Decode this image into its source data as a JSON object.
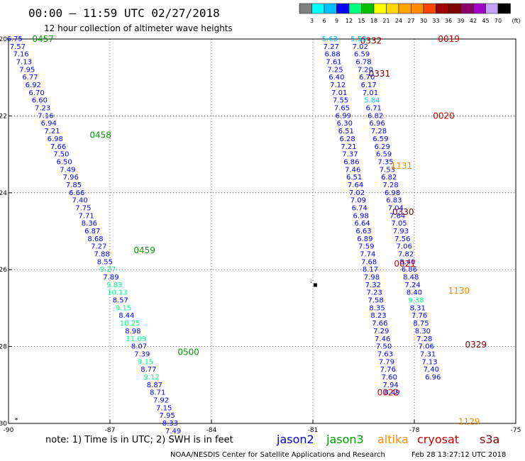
{
  "header": {
    "title": "00:00 – 11:59 UTC 02/27/2018",
    "subtitle": "12 hour collection of altimeter wave heights"
  },
  "colorbar": {
    "colors": [
      "#808080",
      "#00ffff",
      "#00bfff",
      "#0000ff",
      "#00ff7f",
      "#00c000",
      "#ffff00",
      "#ffd700",
      "#ffa500",
      "#ff8c00",
      "#ff4500",
      "#a00000",
      "#800000",
      "#8b0066",
      "#a000c8",
      "#c8a0ff",
      "#000000"
    ],
    "ticks": [
      "3",
      "6",
      "9",
      "12",
      "15",
      "18",
      "21",
      "24",
      "27",
      "30",
      "33",
      "36",
      "39",
      "42",
      "45",
      "70"
    ],
    "unit": "(ft)"
  },
  "footer": {
    "note": "note: 1) Time is in UTC; 2) SWH is in feet",
    "credit": "NOAA/NESDIS Center for Satellite Applications and Research",
    "timestamp": "Feb 28 13:27:12 UTC 2018"
  },
  "legend": [
    {
      "name": "jason2",
      "color": "#0000cc"
    },
    {
      "name": "jason3",
      "color": "#00a000"
    },
    {
      "name": "altika",
      "color": "#ff8c00"
    },
    {
      "name": "cryosat",
      "color": "#cc0000"
    },
    {
      "name": "s3a",
      "color": "#800000"
    }
  ],
  "chart_data": {
    "type": "scatter",
    "xlim": [
      -90,
      -75
    ],
    "ylim": [
      -30,
      -20
    ],
    "xticks": [
      "-90",
      "-87",
      "-84",
      "-81",
      "-78",
      "-75"
    ],
    "xtick_values": [
      -90,
      -87,
      -84,
      -81,
      -78,
      -75
    ],
    "yticks": [
      "-20",
      "-22",
      "-24",
      "-26",
      "-28",
      "-30"
    ],
    "ytick_values": [
      -20,
      -22,
      -24,
      -26,
      -28,
      -30
    ],
    "grid": true,
    "marks": [
      {
        "x": -89.77,
        "y": -29.97,
        "text": "*"
      },
      {
        "x": -81.05,
        "y": -26.4,
        "text": "·"
      },
      {
        "x": -80.93,
        "y": -26.45,
        "text": "▪"
      }
    ],
    "tracks": [
      {
        "satellite": "jason3",
        "color": "#00a000",
        "pass_labels": [
          {
            "text": "0457",
            "x": -89.3,
            "y": -20.0
          },
          {
            "text": "0458",
            "x": -87.6,
            "y": -22.5
          },
          {
            "text": "0459",
            "x": -86.3,
            "y": -25.5
          },
          {
            "text": "0500",
            "x": -85.0,
            "y": -28.15
          }
        ],
        "points": [
          {
            "x": -89.82,
            "y": -20.0,
            "v": "6.75"
          },
          {
            "x": -89.73,
            "y": -20.2,
            "v": "7.57"
          },
          {
            "x": -89.63,
            "y": -20.4,
            "v": "7.16"
          },
          {
            "x": -89.54,
            "y": -20.6,
            "v": "7.13"
          },
          {
            "x": -89.45,
            "y": -20.8,
            "v": "7.95"
          },
          {
            "x": -89.36,
            "y": -21.0,
            "v": "6.77"
          },
          {
            "x": -89.27,
            "y": -21.2,
            "v": "6.92"
          },
          {
            "x": -89.17,
            "y": -21.4,
            "v": "6.70"
          },
          {
            "x": -89.08,
            "y": -21.6,
            "v": "6.60"
          },
          {
            "x": -88.99,
            "y": -21.8,
            "v": "7.23"
          },
          {
            "x": -88.9,
            "y": -22.0,
            "v": "7.16"
          },
          {
            "x": -88.81,
            "y": -22.2,
            "v": "6.94"
          },
          {
            "x": -88.71,
            "y": -22.4,
            "v": "7.21"
          },
          {
            "x": -88.62,
            "y": -22.6,
            "v": "6.98"
          },
          {
            "x": -88.53,
            "y": -22.8,
            "v": "7.66"
          },
          {
            "x": -88.44,
            "y": -23.0,
            "v": "7.50"
          },
          {
            "x": -88.35,
            "y": -23.2,
            "v": "6.50"
          },
          {
            "x": -88.25,
            "y": -23.4,
            "v": "7.49"
          },
          {
            "x": -88.16,
            "y": -23.6,
            "v": "7.96"
          },
          {
            "x": -88.07,
            "y": -23.8,
            "v": "7.85"
          },
          {
            "x": -87.98,
            "y": -24.0,
            "v": "6.66"
          },
          {
            "x": -87.89,
            "y": -24.2,
            "v": "7.40"
          },
          {
            "x": -87.79,
            "y": -24.4,
            "v": "7.75"
          },
          {
            "x": -87.7,
            "y": -24.6,
            "v": "7.71"
          },
          {
            "x": -87.61,
            "y": -24.8,
            "v": "8.36"
          },
          {
            "x": -87.52,
            "y": -25.0,
            "v": "6.87"
          },
          {
            "x": -87.43,
            "y": -25.2,
            "v": "8.68"
          },
          {
            "x": -87.33,
            "y": -25.4,
            "v": "7.27"
          },
          {
            "x": -87.24,
            "y": -25.6,
            "v": "7.88"
          },
          {
            "x": -87.15,
            "y": -25.8,
            "v": "8.55"
          },
          {
            "x": -87.06,
            "y": -26.0,
            "v": "9.27"
          },
          {
            "x": -86.97,
            "y": -26.2,
            "v": "7.89"
          },
          {
            "x": -86.87,
            "y": -26.4,
            "v": "9.83"
          },
          {
            "x": -86.78,
            "y": -26.6,
            "v": "10.13"
          },
          {
            "x": -86.69,
            "y": -26.8,
            "v": "8.57"
          },
          {
            "x": -86.6,
            "y": -27.0,
            "v": "9.15"
          },
          {
            "x": -86.51,
            "y": -27.2,
            "v": "8.44"
          },
          {
            "x": -86.41,
            "y": -27.4,
            "v": "10.25"
          },
          {
            "x": -86.32,
            "y": -27.6,
            "v": "8.98"
          },
          {
            "x": -86.23,
            "y": -27.8,
            "v": "11.09"
          },
          {
            "x": -86.14,
            "y": -28.0,
            "v": "8.07"
          },
          {
            "x": -86.05,
            "y": -28.2,
            "v": "7.39"
          },
          {
            "x": -85.95,
            "y": -28.4,
            "v": "9.15"
          },
          {
            "x": -85.86,
            "y": -28.6,
            "v": "8.77"
          },
          {
            "x": -85.77,
            "y": -28.8,
            "v": "9.12"
          },
          {
            "x": -85.68,
            "y": -29.0,
            "v": "8.87"
          },
          {
            "x": -85.59,
            "y": -29.2,
            "v": "8.71"
          },
          {
            "x": -85.49,
            "y": -29.4,
            "v": "7.92"
          },
          {
            "x": -85.4,
            "y": -29.6,
            "v": "7.15"
          },
          {
            "x": -85.31,
            "y": -29.8,
            "v": "7.95"
          },
          {
            "x": -85.22,
            "y": -30.0,
            "v": "8.33"
          },
          {
            "x": -85.13,
            "y": -30.2,
            "v": "7.49"
          }
        ]
      },
      {
        "satellite": "s3a",
        "color": "#800000",
        "pass_labels": [
          {
            "text": "0332",
            "x": -79.6,
            "y": -20.05
          },
          {
            "text": "0331",
            "x": -79.35,
            "y": -20.9
          },
          {
            "text": "0330",
            "x": -78.65,
            "y": -24.5
          },
          {
            "text": "0329",
            "x": -76.5,
            "y": -27.95
          }
        ],
        "points": [
          {
            "x": -80.5,
            "y": -20.0,
            "v": "5.63"
          },
          {
            "x": -80.46,
            "y": -20.2,
            "v": "7.27"
          },
          {
            "x": -80.42,
            "y": -20.4,
            "v": "6.88"
          },
          {
            "x": -80.38,
            "y": -20.6,
            "v": "7.61"
          },
          {
            "x": -80.34,
            "y": -20.8,
            "v": "7.25"
          },
          {
            "x": -80.3,
            "y": -21.0,
            "v": "6.40"
          },
          {
            "x": -80.26,
            "y": -21.2,
            "v": "7.12"
          },
          {
            "x": -80.22,
            "y": -21.4,
            "v": "7.01"
          },
          {
            "x": -80.18,
            "y": -21.6,
            "v": "7.55"
          },
          {
            "x": -80.14,
            "y": -21.8,
            "v": "7.65"
          },
          {
            "x": -80.1,
            "y": -22.0,
            "v": "6.99"
          },
          {
            "x": -80.06,
            "y": -22.2,
            "v": "6.30"
          },
          {
            "x": -80.02,
            "y": -22.4,
            "v": "6.51"
          },
          {
            "x": -79.98,
            "y": -22.6,
            "v": "6.28"
          },
          {
            "x": -79.94,
            "y": -22.8,
            "v": "7.21"
          },
          {
            "x": -79.9,
            "y": -23.0,
            "v": "7.37"
          },
          {
            "x": -79.86,
            "y": -23.2,
            "v": "6.86"
          },
          {
            "x": -79.82,
            "y": -23.4,
            "v": "7.46"
          },
          {
            "x": -79.78,
            "y": -23.6,
            "v": "6.51"
          },
          {
            "x": -79.74,
            "y": -23.8,
            "v": "7.64"
          },
          {
            "x": -79.7,
            "y": -24.0,
            "v": "7.02"
          },
          {
            "x": -79.66,
            "y": -24.2,
            "v": "7.09"
          },
          {
            "x": -79.62,
            "y": -24.4,
            "v": "6.74"
          },
          {
            "x": -79.58,
            "y": -24.6,
            "v": "6.98"
          },
          {
            "x": -79.54,
            "y": -24.8,
            "v": "6.64"
          },
          {
            "x": -79.5,
            "y": -25.0,
            "v": "6.63"
          },
          {
            "x": -79.46,
            "y": -25.2,
            "v": "6.89"
          },
          {
            "x": -79.42,
            "y": -25.4,
            "v": "7.59"
          },
          {
            "x": -79.38,
            "y": -25.6,
            "v": "7.74"
          },
          {
            "x": -79.34,
            "y": -25.8,
            "v": "7.68"
          },
          {
            "x": -79.3,
            "y": -26.0,
            "v": "8.17"
          },
          {
            "x": -79.26,
            "y": -26.2,
            "v": "7.98"
          },
          {
            "x": -79.22,
            "y": -26.4,
            "v": "7.32"
          },
          {
            "x": -79.18,
            "y": -26.6,
            "v": "7.23"
          },
          {
            "x": -79.14,
            "y": -26.8,
            "v": "7.58"
          },
          {
            "x": -79.1,
            "y": -27.0,
            "v": "8.35"
          },
          {
            "x": -79.06,
            "y": -27.2,
            "v": "8.23"
          },
          {
            "x": -79.02,
            "y": -27.4,
            "v": "7.66"
          },
          {
            "x": -78.98,
            "y": -27.6,
            "v": "7.29"
          },
          {
            "x": -78.94,
            "y": -27.8,
            "v": "7.46"
          },
          {
            "x": -78.9,
            "y": -28.0,
            "v": "7.50"
          },
          {
            "x": -78.86,
            "y": -28.2,
            "v": "7.63"
          },
          {
            "x": -78.82,
            "y": -28.4,
            "v": "7.79"
          },
          {
            "x": -78.78,
            "y": -28.6,
            "v": "7.76"
          },
          {
            "x": -78.74,
            "y": -28.8,
            "v": "7.60"
          },
          {
            "x": -78.7,
            "y": -29.0,
            "v": "7.94"
          },
          {
            "x": -78.66,
            "y": -29.2,
            "v": "8.49"
          }
        ]
      },
      {
        "satellite": "cryosat",
        "color": "#cc0000",
        "pass_labels": [
          {
            "text": "0019",
            "x": -77.3,
            "y": -20.0
          },
          {
            "text": "0020",
            "x": -77.45,
            "y": -22.0
          },
          {
            "text": "0021",
            "x": -78.6,
            "y": -25.85
          },
          {
            "text": "0022",
            "x": -79.1,
            "y": -29.2
          }
        ],
        "points": [
          {
            "x": -79.65,
            "y": -20.0,
            "v": "5.53"
          },
          {
            "x": -79.6,
            "y": -20.2,
            "v": "7.02"
          },
          {
            "x": -79.55,
            "y": -20.4,
            "v": "6.59"
          },
          {
            "x": -79.5,
            "y": -20.6,
            "v": "6.78"
          },
          {
            "x": -79.45,
            "y": -20.8,
            "v": "7.20"
          },
          {
            "x": -79.4,
            "y": -21.0,
            "v": "6.70"
          },
          {
            "x": -79.35,
            "y": -21.2,
            "v": "6.17"
          },
          {
            "x": -79.3,
            "y": -21.4,
            "v": "7.01"
          },
          {
            "x": -79.25,
            "y": -21.6,
            "v": "5.84"
          },
          {
            "x": -79.2,
            "y": -21.8,
            "v": "6.71"
          },
          {
            "x": -79.15,
            "y": -22.0,
            "v": "6.82"
          },
          {
            "x": -79.1,
            "y": -22.2,
            "v": "6.96"
          },
          {
            "x": -79.05,
            "y": -22.4,
            "v": "7.28"
          },
          {
            "x": -79.0,
            "y": -22.6,
            "v": "6.59"
          },
          {
            "x": -78.95,
            "y": -22.8,
            "v": "6.29"
          },
          {
            "x": -78.9,
            "y": -23.0,
            "v": "6.59"
          },
          {
            "x": -78.85,
            "y": -23.2,
            "v": "7.35"
          },
          {
            "x": -78.8,
            "y": -23.4,
            "v": "7.53"
          },
          {
            "x": -78.75,
            "y": -23.6,
            "v": "6.82"
          },
          {
            "x": -78.7,
            "y": -23.8,
            "v": "7.28"
          },
          {
            "x": -78.65,
            "y": -24.0,
            "v": "6.98"
          },
          {
            "x": -78.6,
            "y": -24.2,
            "v": "6.83"
          },
          {
            "x": -78.55,
            "y": -24.4,
            "v": "7.04"
          },
          {
            "x": -78.5,
            "y": -24.6,
            "v": "7.64"
          },
          {
            "x": -78.45,
            "y": -24.8,
            "v": "7.05"
          },
          {
            "x": -78.4,
            "y": -25.0,
            "v": "7.93"
          },
          {
            "x": -78.35,
            "y": -25.2,
            "v": "7.56"
          },
          {
            "x": -78.3,
            "y": -25.4,
            "v": "7.06"
          },
          {
            "x": -78.25,
            "y": -25.6,
            "v": "7.82"
          },
          {
            "x": -78.2,
            "y": -25.8,
            "v": "8.40"
          },
          {
            "x": -78.15,
            "y": -26.0,
            "v": "6.86"
          },
          {
            "x": -78.1,
            "y": -26.2,
            "v": "8.48"
          },
          {
            "x": -78.05,
            "y": -26.4,
            "v": "7.24"
          },
          {
            "x": -78.0,
            "y": -26.6,
            "v": "8.40"
          },
          {
            "x": -77.95,
            "y": -26.8,
            "v": "9.38"
          },
          {
            "x": -77.9,
            "y": -27.0,
            "v": "8.31"
          },
          {
            "x": -77.85,
            "y": -27.2,
            "v": "7.76"
          },
          {
            "x": -77.8,
            "y": -27.4,
            "v": "8.75"
          },
          {
            "x": -77.75,
            "y": -27.6,
            "v": "8.30"
          },
          {
            "x": -77.7,
            "y": -27.8,
            "v": "7.28"
          },
          {
            "x": -77.65,
            "y": -28.0,
            "v": "7.06"
          },
          {
            "x": -77.6,
            "y": -28.2,
            "v": "7.31"
          },
          {
            "x": -77.55,
            "y": -28.4,
            "v": "7.13"
          },
          {
            "x": -77.5,
            "y": -28.6,
            "v": "7.40"
          },
          {
            "x": -77.45,
            "y": -28.8,
            "v": "6.96"
          }
        ]
      },
      {
        "satellite": "altika",
        "color": "#ff8c00",
        "pass_labels": [
          {
            "text": "1131",
            "x": -78.7,
            "y": -23.3
          },
          {
            "text": "1130",
            "x": -77.0,
            "y": -26.55
          },
          {
            "text": "1129",
            "x": -76.7,
            "y": -29.95
          }
        ],
        "points": []
      }
    ]
  }
}
